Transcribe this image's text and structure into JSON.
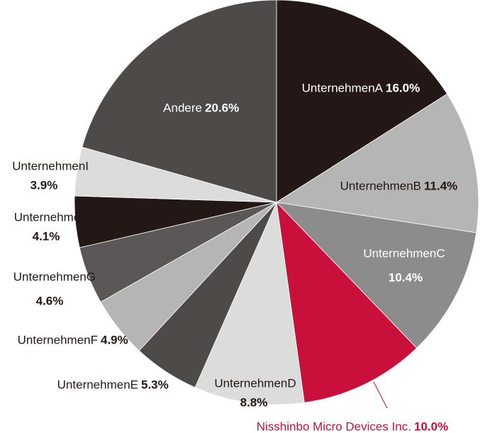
{
  "chart_data": {
    "type": "pie",
    "categories": [
      "UnternehmenA",
      "UnternehmenB",
      "UnternehmenC",
      "Nisshinbo Micro Devices Inc.",
      "UnternehmenD",
      "UnternehmenE",
      "UnternehmenF",
      "UnternehmenG",
      "UnternehmenH",
      "UnternehmenI",
      "Andere"
    ],
    "values": [
      16.0,
      11.4,
      10.4,
      10.0,
      8.8,
      5.3,
      4.9,
      4.6,
      4.1,
      3.9,
      20.6
    ],
    "value_labels": [
      "16.0%",
      "11.4%",
      "10.4%",
      "10.0%",
      "8.8%",
      "5.3%",
      "4.9%",
      "4.6%",
      "4.1%",
      "3.9%",
      "20.6%"
    ],
    "colors": [
      "#231815",
      "#b5b5b5",
      "#8c8c8c",
      "#c8103a",
      "#dcdcdc",
      "#4d4a48",
      "#b5b5b5",
      "#5a5756",
      "#231815",
      "#dcdcdc",
      "#4d4a48"
    ]
  }
}
